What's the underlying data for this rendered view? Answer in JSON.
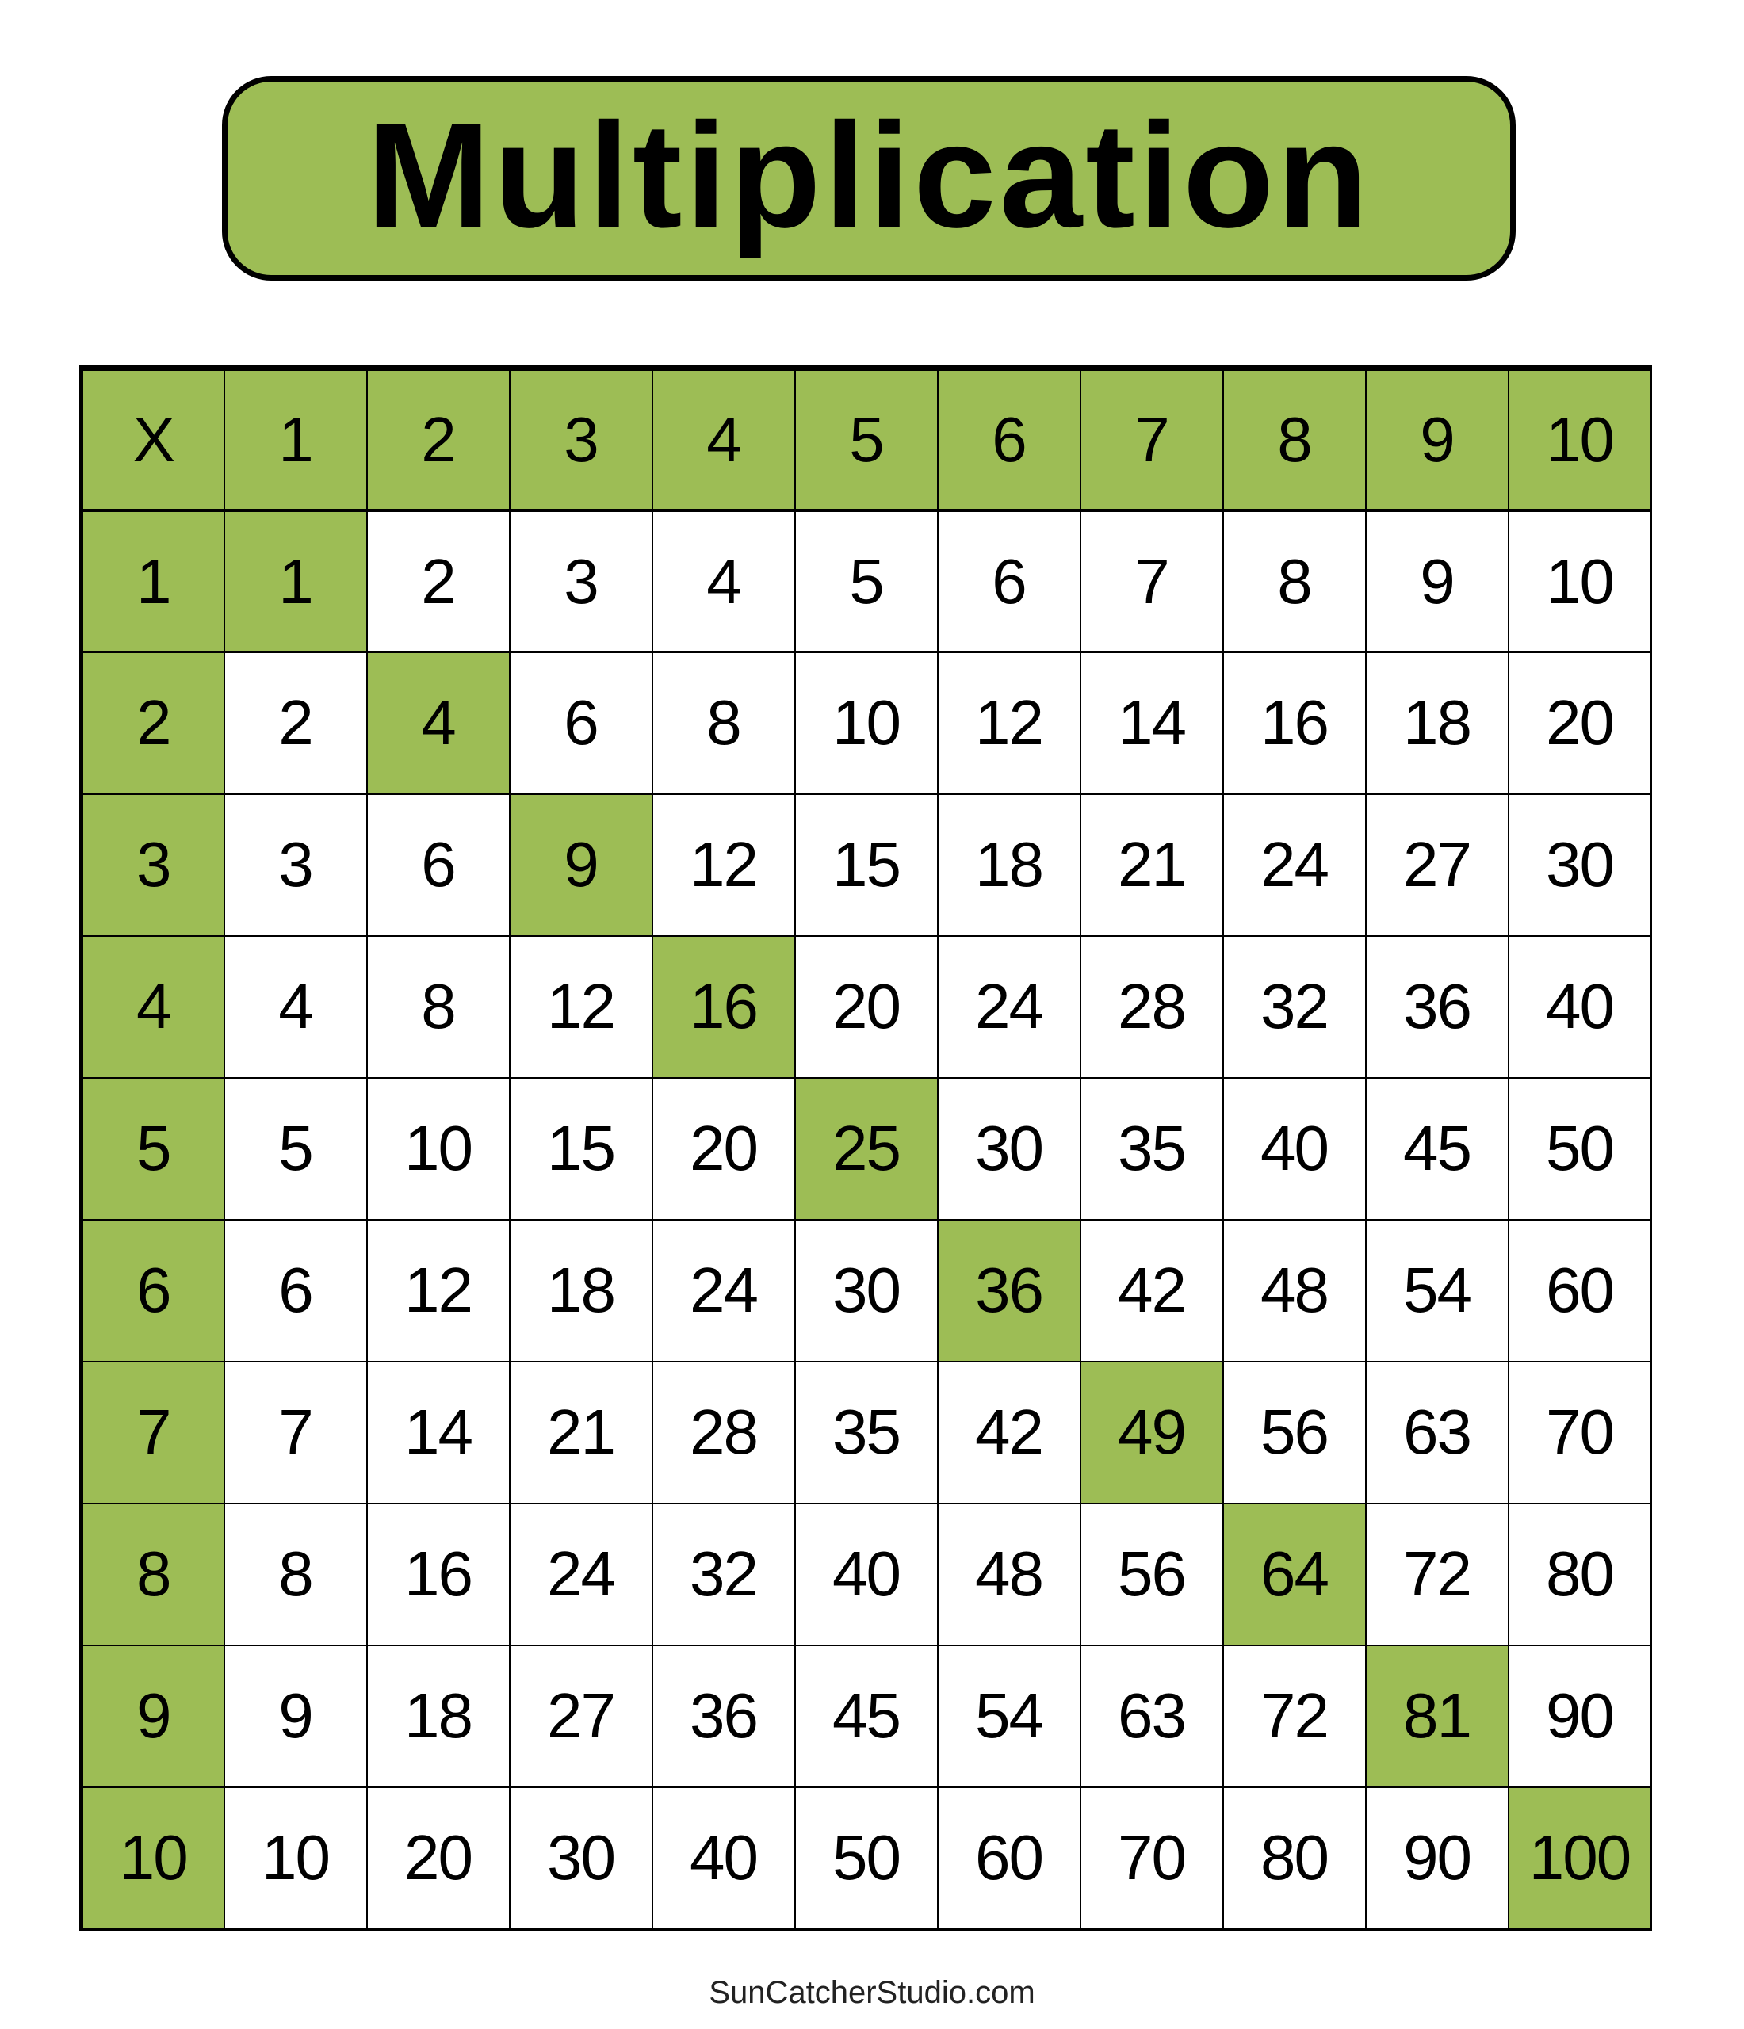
{
  "title": "Multiplication",
  "footer": "SunCatcherStudio.com",
  "colors": {
    "highlight": "#9dbd55",
    "border": "#000000",
    "background": "#ffffff"
  },
  "table": {
    "corner": "X",
    "column_headers": [
      "1",
      "2",
      "3",
      "4",
      "5",
      "6",
      "7",
      "8",
      "9",
      "10"
    ],
    "row_headers": [
      "1",
      "2",
      "3",
      "4",
      "5",
      "6",
      "7",
      "8",
      "9",
      "10"
    ],
    "rows": [
      [
        "1",
        "2",
        "3",
        "4",
        "5",
        "6",
        "7",
        "8",
        "9",
        "10"
      ],
      [
        "2",
        "4",
        "6",
        "8",
        "10",
        "12",
        "14",
        "16",
        "18",
        "20"
      ],
      [
        "3",
        "6",
        "9",
        "12",
        "15",
        "18",
        "21",
        "24",
        "27",
        "30"
      ],
      [
        "4",
        "8",
        "12",
        "16",
        "20",
        "24",
        "28",
        "32",
        "36",
        "40"
      ],
      [
        "5",
        "10",
        "15",
        "20",
        "25",
        "30",
        "35",
        "40",
        "45",
        "50"
      ],
      [
        "6",
        "12",
        "18",
        "24",
        "30",
        "36",
        "42",
        "48",
        "54",
        "60"
      ],
      [
        "7",
        "14",
        "21",
        "28",
        "35",
        "42",
        "49",
        "56",
        "63",
        "70"
      ],
      [
        "8",
        "16",
        "24",
        "32",
        "40",
        "48",
        "56",
        "64",
        "72",
        "80"
      ],
      [
        "9",
        "18",
        "27",
        "36",
        "45",
        "54",
        "63",
        "72",
        "81",
        "90"
      ],
      [
        "10",
        "20",
        "30",
        "40",
        "50",
        "60",
        "70",
        "80",
        "90",
        "100"
      ]
    ],
    "highlight": "diagonal-squares"
  }
}
